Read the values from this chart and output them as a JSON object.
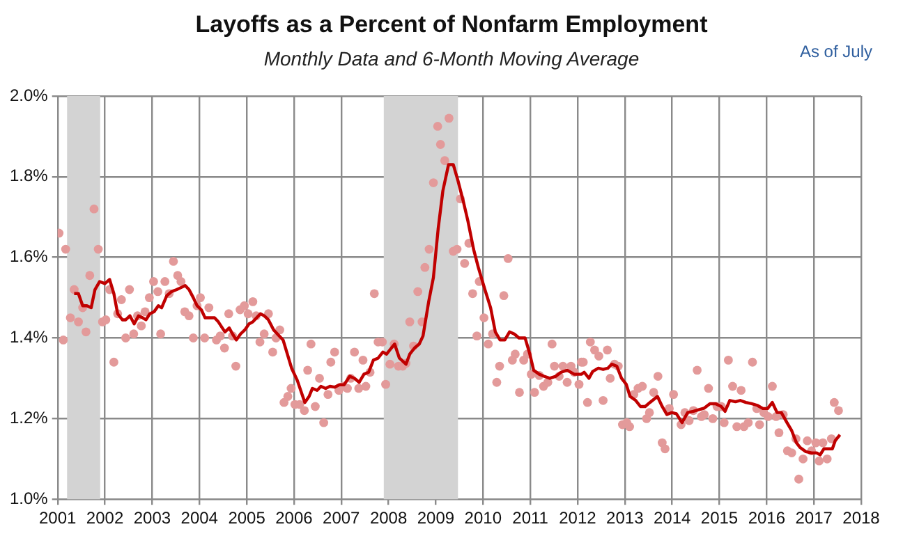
{
  "chart_data": {
    "type": "scatter",
    "title": "Layoffs as a Percent of Nonfarm Employment",
    "subtitle": "Monthly Data and 6-Month Moving Average",
    "annotations": [
      "As of July"
    ],
    "xlim": [
      2001,
      2018
    ],
    "xticks": [
      2001,
      2002,
      2003,
      2004,
      2005,
      2006,
      2007,
      2008,
      2009,
      2010,
      2011,
      2012,
      2013,
      2014,
      2015,
      2016,
      2017,
      2018
    ],
    "ylim": [
      1.0,
      2.0
    ],
    "yticks": [
      {
        "value": 1.0,
        "label": "1.0%"
      },
      {
        "value": 1.2,
        "label": "1.2%"
      },
      {
        "value": 1.4,
        "label": "1.4%"
      },
      {
        "value": 1.6,
        "label": "1.6%"
      },
      {
        "value": 1.8,
        "label": "1.8%"
      },
      {
        "value": 2.0,
        "label": "2.0%"
      }
    ],
    "grid": true,
    "legend": false,
    "bands": [
      {
        "axis": "x",
        "from": 2001.2,
        "to": 2001.9,
        "color": "#d3d3d3"
      },
      {
        "axis": "x",
        "from": 2007.9,
        "to": 2009.47,
        "color": "#d3d3d3"
      }
    ],
    "series": [
      {
        "marker": "circle",
        "color": "#e39a9a",
        "x": [
          2001.03,
          2001.12,
          2001.17,
          2001.27,
          2001.35,
          2001.44,
          2001.53,
          2001.6,
          2001.68,
          2001.77,
          2001.86,
          2001.95,
          2002.02,
          2002.1,
          2002.19,
          2002.27,
          2002.35,
          2002.44,
          2002.52,
          2002.61,
          2002.69,
          2002.77,
          2002.85,
          2002.94,
          2003.03,
          2003.12,
          2003.18,
          2003.27,
          2003.36,
          2003.45,
          2003.54,
          2003.61,
          2003.69,
          2003.78,
          2003.87,
          2003.95,
          2004.02,
          2004.11,
          2004.2,
          2004.36,
          2004.44,
          2004.53,
          2004.62,
          2004.7,
          2004.77,
          2004.86,
          2004.95,
          2005.03,
          2005.13,
          2005.2,
          2005.28,
          2005.37,
          2005.46,
          2005.55,
          2005.62,
          2005.7,
          2005.79,
          2005.87,
          2005.94,
          2006.02,
          2006.12,
          2006.22,
          2006.29,
          2006.36,
          2006.45,
          2006.54,
          2006.63,
          2006.72,
          2006.78,
          2006.86,
          2006.95,
          2007.04,
          2007.13,
          2007.2,
          2007.28,
          2007.37,
          2007.46,
          2007.52,
          2007.61,
          2007.7,
          2007.78,
          2007.87,
          2007.94,
          2008.03,
          2008.12,
          2008.21,
          2008.3,
          2008.37,
          2008.45,
          2008.53,
          2008.62,
          2008.71,
          2008.77,
          2008.86,
          2008.95,
          2009.04,
          2009.1,
          2009.19,
          2009.28,
          2009.37,
          2009.45,
          2009.52,
          2009.61,
          2009.7,
          2009.78,
          2009.87,
          2009.92,
          2010.02,
          2010.11,
          2010.2,
          2010.29,
          2010.35,
          2010.44,
          2010.53,
          2010.62,
          2010.68,
          2010.77,
          2010.86,
          2010.94,
          2011.02,
          2011.09,
          2011.19,
          2011.28,
          2011.37,
          2011.46,
          2011.51,
          2011.61,
          2011.69,
          2011.78,
          2011.86,
          2011.93,
          2012.03,
          2012.08,
          2012.12,
          2012.21,
          2012.27,
          2012.36,
          2012.45,
          2012.54,
          2012.63,
          2012.69,
          2012.78,
          2012.86,
          2012.95,
          2013.04,
          2013.1,
          2013.19,
          2013.28,
          2013.37,
          2013.46,
          2013.52,
          2013.61,
          2013.7,
          2013.79,
          2013.85,
          2013.94,
          2014.03,
          2014.19,
          2014.27,
          2014.36,
          2014.45,
          2014.53,
          2014.62,
          2014.68,
          2014.77,
          2014.86,
          2014.95,
          2015.04,
          2015.1,
          2015.19,
          2015.28,
          2015.37,
          2015.46,
          2015.52,
          2015.61,
          2015.7,
          2015.79,
          2015.85,
          2015.94,
          2016.03,
          2016.12,
          2016.2,
          2016.26,
          2016.35,
          2016.44,
          2016.53,
          2016.62,
          2016.68,
          2016.77,
          2016.86,
          2016.95,
          2017.04,
          2017.11,
          2017.19,
          2017.28,
          2017.37,
          2017.43,
          2017.52
        ],
        "values": [
          1.66,
          1.395,
          1.62,
          1.45,
          1.52,
          1.44,
          1.475,
          1.415,
          1.555,
          1.72,
          1.62,
          1.44,
          1.445,
          1.52,
          1.34,
          1.46,
          1.495,
          1.4,
          1.52,
          1.41,
          1.455,
          1.43,
          1.465,
          1.5,
          1.54,
          1.515,
          1.41,
          1.54,
          1.51,
          1.59,
          1.555,
          1.54,
          1.465,
          1.455,
          1.4,
          1.48,
          1.5,
          1.4,
          1.475,
          1.395,
          1.405,
          1.375,
          1.46,
          1.405,
          1.33,
          1.47,
          1.48,
          1.46,
          1.49,
          1.455,
          1.39,
          1.41,
          1.46,
          1.365,
          1.4,
          1.42,
          1.24,
          1.255,
          1.275,
          1.235,
          1.235,
          1.22,
          1.32,
          1.385,
          1.23,
          1.3,
          1.19,
          1.26,
          1.34,
          1.365,
          1.27,
          1.28,
          1.275,
          1.3,
          1.365,
          1.275,
          1.345,
          1.28,
          1.315,
          1.51,
          1.39,
          1.39,
          1.285,
          1.335,
          1.385,
          1.33,
          1.33,
          1.337,
          1.44,
          1.38,
          1.515,
          1.44,
          1.575,
          1.62,
          1.785,
          1.925,
          1.88,
          1.84,
          1.945,
          1.615,
          1.62,
          1.745,
          1.585,
          1.635,
          1.51,
          1.405,
          1.54,
          1.45,
          1.385,
          1.41,
          1.29,
          1.33,
          1.505,
          1.597,
          1.345,
          1.36,
          1.265,
          1.345,
          1.36,
          1.31,
          1.265,
          1.307,
          1.28,
          1.29,
          1.385,
          1.33,
          1.305,
          1.33,
          1.29,
          1.33,
          1.315,
          1.285,
          1.34,
          1.34,
          1.24,
          1.39,
          1.37,
          1.355,
          1.245,
          1.37,
          1.3,
          1.335,
          1.33,
          1.185,
          1.19,
          1.18,
          1.26,
          1.275,
          1.28,
          1.2,
          1.215,
          1.265,
          1.305,
          1.14,
          1.125,
          1.225,
          1.26,
          1.185,
          1.215,
          1.195,
          1.22,
          1.32,
          1.205,
          1.21,
          1.275,
          1.2,
          1.23,
          1.23,
          1.19,
          1.345,
          1.28,
          1.18,
          1.27,
          1.18,
          1.19,
          1.34,
          1.225,
          1.185,
          1.215,
          1.205,
          1.28,
          1.205,
          1.165,
          1.21,
          1.12,
          1.115,
          1.15,
          1.05,
          1.1,
          1.145,
          1.12,
          1.14,
          1.095,
          1.14,
          1.1,
          1.15,
          1.24,
          1.22
        ]
      },
      {
        "type": "line",
        "marker": "none",
        "line_style": "solid",
        "color": "#c00000",
        "x": [
          2001.35,
          2001.44,
          2001.53,
          2001.62,
          2001.71,
          2001.79,
          2001.89,
          2002.0,
          2002.1,
          2002.19,
          2002.27,
          2002.37,
          2002.44,
          2002.53,
          2002.62,
          2002.71,
          2002.8,
          2002.87,
          2002.95,
          2003.04,
          2003.13,
          2003.2,
          2003.31,
          2003.41,
          2003.52,
          2003.61,
          2003.7,
          2003.78,
          2003.87,
          2003.95,
          2004.04,
          2004.12,
          2004.22,
          2004.32,
          2004.4,
          2004.54,
          2004.63,
          2004.7,
          2004.78,
          2004.87,
          2004.96,
          2005.05,
          2005.13,
          2005.21,
          2005.29,
          2005.37,
          2005.46,
          2005.57,
          2005.77,
          2005.95,
          2006.07,
          2006.23,
          2006.32,
          2006.39,
          2006.49,
          2006.57,
          2006.67,
          2006.76,
          2006.86,
          2006.96,
          2007.06,
          2007.18,
          2007.28,
          2007.38,
          2007.48,
          2007.58,
          2007.68,
          2007.78,
          2007.88,
          2007.96,
          2008.06,
          2008.13,
          2008.23,
          2008.37,
          2008.45,
          2008.55,
          2008.65,
          2008.73,
          2008.85,
          2008.95,
          2009.05,
          2009.15,
          2009.27,
          2009.37,
          2009.47,
          2009.58,
          2009.68,
          2009.8,
          2009.9,
          2010.04,
          2010.16,
          2010.26,
          2010.36,
          2010.46,
          2010.56,
          2010.66,
          2010.76,
          2010.89,
          2010.99,
          2011.07,
          2011.19,
          2011.29,
          2011.41,
          2011.54,
          2011.65,
          2011.78,
          2011.93,
          2012.08,
          2012.14,
          2012.24,
          2012.32,
          2012.44,
          2012.54,
          2012.64,
          2012.72,
          2012.83,
          2012.93,
          2013.03,
          2013.11,
          2013.23,
          2013.33,
          2013.43,
          2013.53,
          2013.69,
          2013.79,
          2013.89,
          2013.99,
          2014.09,
          2014.21,
          2014.33,
          2014.45,
          2014.56,
          2014.68,
          2014.8,
          2014.92,
          2015.04,
          2015.12,
          2015.22,
          2015.34,
          2015.44,
          2015.56,
          2015.68,
          2015.8,
          2015.92,
          2016.02,
          2016.12,
          2016.22,
          2016.31,
          2016.43,
          2016.53,
          2016.63,
          2016.71,
          2016.83,
          2016.95,
          2017.06,
          2017.13,
          2017.21,
          2017.31,
          2017.39,
          2017.45,
          2017.55
        ],
        "values": [
          1.51,
          1.51,
          1.48,
          1.48,
          1.475,
          1.52,
          1.54,
          1.535,
          1.545,
          1.51,
          1.46,
          1.445,
          1.445,
          1.455,
          1.435,
          1.455,
          1.45,
          1.445,
          1.46,
          1.465,
          1.48,
          1.475,
          1.505,
          1.515,
          1.52,
          1.525,
          1.53,
          1.52,
          1.5,
          1.48,
          1.47,
          1.45,
          1.45,
          1.45,
          1.44,
          1.415,
          1.425,
          1.41,
          1.395,
          1.41,
          1.42,
          1.435,
          1.44,
          1.45,
          1.46,
          1.455,
          1.445,
          1.42,
          1.395,
          1.325,
          1.295,
          1.24,
          1.255,
          1.275,
          1.27,
          1.28,
          1.275,
          1.28,
          1.278,
          1.284,
          1.284,
          1.305,
          1.3,
          1.29,
          1.31,
          1.315,
          1.345,
          1.35,
          1.365,
          1.36,
          1.375,
          1.385,
          1.35,
          1.335,
          1.36,
          1.375,
          1.385,
          1.405,
          1.49,
          1.55,
          1.67,
          1.765,
          1.83,
          1.83,
          1.79,
          1.74,
          1.69,
          1.62,
          1.575,
          1.52,
          1.475,
          1.415,
          1.395,
          1.395,
          1.415,
          1.41,
          1.4,
          1.4,
          1.36,
          1.32,
          1.31,
          1.305,
          1.3,
          1.305,
          1.315,
          1.32,
          1.31,
          1.31,
          1.315,
          1.3,
          1.317,
          1.325,
          1.322,
          1.325,
          1.335,
          1.33,
          1.3,
          1.285,
          1.255,
          1.245,
          1.23,
          1.23,
          1.24,
          1.255,
          1.23,
          1.21,
          1.215,
          1.212,
          1.19,
          1.215,
          1.218,
          1.222,
          1.226,
          1.237,
          1.237,
          1.23,
          1.218,
          1.245,
          1.242,
          1.245,
          1.24,
          1.237,
          1.233,
          1.225,
          1.225,
          1.24,
          1.215,
          1.215,
          1.19,
          1.17,
          1.14,
          1.128,
          1.118,
          1.115,
          1.115,
          1.11,
          1.125,
          1.125,
          1.125,
          1.145,
          1.16
        ]
      }
    ]
  }
}
